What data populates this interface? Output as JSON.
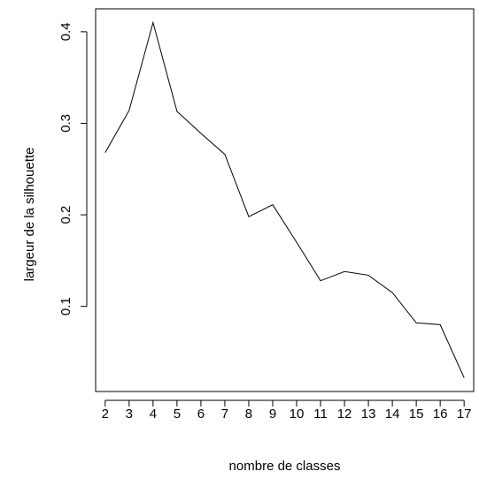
{
  "chart_data": {
    "type": "line",
    "title": "",
    "xlabel": "nombre de classes",
    "ylabel": "largeur de la silhouette",
    "x": [
      2,
      3,
      4,
      5,
      6,
      7,
      8,
      9,
      10,
      11,
      12,
      13,
      14,
      15,
      16,
      17
    ],
    "series": [
      {
        "values": [
          0.268,
          0.314,
          0.41,
          0.313,
          0.289,
          0.266,
          0.198,
          0.211,
          0.17,
          0.128,
          0.138,
          0.134,
          0.115,
          0.082,
          0.08,
          0.022
        ]
      }
    ],
    "x_ticks": [
      "2",
      "3",
      "4",
      "5",
      "6",
      "7",
      "8",
      "9",
      "10",
      "11",
      "12",
      "13",
      "14",
      "15",
      "16",
      "17"
    ],
    "y_ticks": [
      "0.1",
      "0.2",
      "0.3",
      "0.4"
    ],
    "y_tick_values": [
      0.1,
      0.2,
      0.3,
      0.4
    ],
    "xlim": [
      1.6,
      17.4
    ],
    "ylim": [
      0.007,
      0.425
    ],
    "grid": false,
    "legend": "none",
    "line_color": "#000000"
  }
}
